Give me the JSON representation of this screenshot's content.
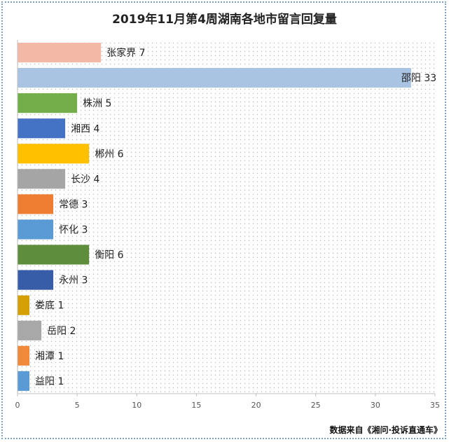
{
  "chart_data": {
    "type": "bar",
    "orientation": "horizontal",
    "title": "2019年11月第4周湖南各地市留言回复量",
    "categories": [
      "张家界",
      "邵阳",
      "株洲",
      "湘西",
      "郴州",
      "长沙",
      "常德",
      "怀化",
      "衡阳",
      "永州",
      "娄底",
      "岳阳",
      "湘潭",
      "益阳"
    ],
    "values": [
      7,
      33,
      5,
      4,
      6,
      4,
      3,
      3,
      6,
      3,
      1,
      2,
      1,
      1
    ],
    "colors": [
      "#f4b9a6",
      "#a9c3e3",
      "#74ae4b",
      "#4472c4",
      "#ffc000",
      "#a5a5a5",
      "#ed7d31",
      "#5b9bd5",
      "#5e8e3c",
      "#375da8",
      "#d59f06",
      "#a8a8a8",
      "#ef8a3a",
      "#5b9bd5"
    ],
    "xlim": [
      0,
      35
    ],
    "xticks": [
      0,
      5,
      10,
      15,
      20,
      25,
      30,
      35
    ],
    "grid": false,
    "background_pattern": "dotted",
    "data_labels": "category and value"
  },
  "source_note": "数据来自《湘问·投诉直通车》"
}
